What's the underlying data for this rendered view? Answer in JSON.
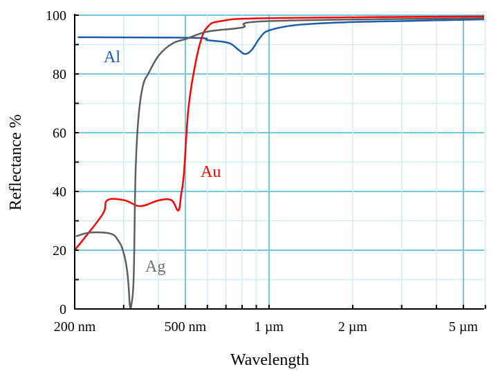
{
  "chart_data": {
    "type": "line",
    "title": "",
    "xlabel": "Wavelength",
    "ylabel": "Reflectance %",
    "x_scale": "log",
    "x_unit": "nm",
    "xlim": [
      200,
      5940
    ],
    "ylim": [
      0,
      100
    ],
    "grid": true,
    "x_ticks": [
      {
        "value": 200,
        "label": "200 nm"
      },
      {
        "value": 500,
        "label": "500 nm"
      },
      {
        "value": 1000,
        "label": "1 µm"
      },
      {
        "value": 2000,
        "label": "2 µm"
      },
      {
        "value": 5000,
        "label": "5 µm"
      }
    ],
    "x_major_grid": [
      500,
      1000,
      5000
    ],
    "x_minor_grid": [
      300,
      400,
      600,
      700,
      800,
      900,
      2000,
      3000,
      4000,
      6000
    ],
    "y_ticks": [
      0,
      20,
      40,
      60,
      80,
      100
    ],
    "y_tick_labels": [
      "0",
      "20",
      "40",
      "60",
      "80",
      "100"
    ],
    "series": [
      {
        "name": "Al",
        "color": "#1f5bab",
        "x": [
          205,
          536,
          601,
          714,
          777,
          820,
          867,
          926,
          1000,
          1268,
          1890,
          3340,
          5940
        ],
        "y": [
          92.5,
          92.3,
          91.5,
          90.6,
          88.2,
          86.8,
          88.2,
          92.2,
          94.8,
          96.7,
          97.6,
          98.1,
          98.6
        ]
      },
      {
        "name": "Au",
        "color": "#ff0000",
        "x": [
          200,
          251,
          262,
          302,
          344,
          402,
          446,
          472,
          483,
          494,
          512,
          536,
          567,
          601,
          673,
          1000,
          5940
        ],
        "y": [
          20,
          32,
          37,
          37,
          35,
          37,
          37,
          33.5,
          39,
          46,
          67.5,
          80.5,
          91,
          96,
          98,
          99,
          99.6
        ]
      },
      {
        "name": "Ag",
        "color": "#5e5e5e",
        "x": [
          202,
          227,
          270,
          288,
          298,
          307,
          312,
          316,
          320,
          326,
          331,
          339,
          352,
          370,
          402,
          450,
          506,
          600,
          800,
          1000,
          5940
        ],
        "y": [
          24.7,
          26,
          25.6,
          23,
          20,
          14.6,
          8.7,
          1,
          1.6,
          11,
          46,
          65,
          76,
          80.5,
          86.4,
          90.4,
          92,
          94.4,
          95.8,
          98,
          99
        ]
      }
    ]
  }
}
